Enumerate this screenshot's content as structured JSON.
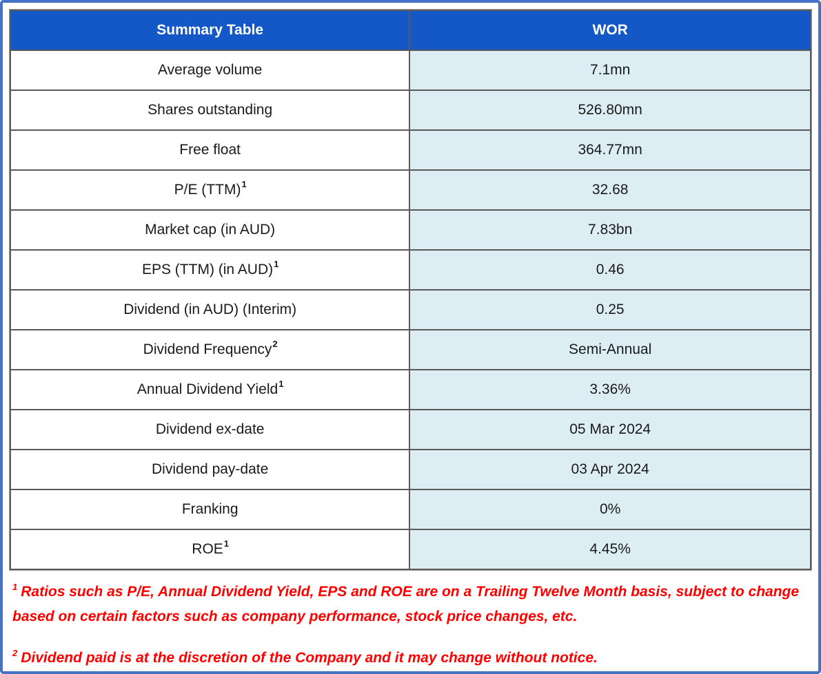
{
  "table": {
    "header": {
      "label_col": "Summary Table",
      "value_col": "WOR"
    },
    "rows": [
      {
        "label": "Average volume",
        "sup": "",
        "value": "7.1mn"
      },
      {
        "label": "Shares outstanding",
        "sup": "",
        "value": "526.80mn"
      },
      {
        "label": "Free float",
        "sup": "",
        "value": "364.77mn"
      },
      {
        "label": "P/E (TTM)",
        "sup": "1",
        "value": "32.68"
      },
      {
        "label": "Market cap (in AUD)",
        "sup": "",
        "value": "7.83bn"
      },
      {
        "label": "EPS (TTM) (in AUD)",
        "sup": "1",
        "value": "0.46"
      },
      {
        "label": "Dividend (in AUD) (Interim)",
        "sup": "",
        "value": "0.25"
      },
      {
        "label": "Dividend Frequency",
        "sup": "2",
        "value": "Semi-Annual"
      },
      {
        "label": "Annual Dividend Yield",
        "sup": "1",
        "value": "3.36%"
      },
      {
        "label": "Dividend ex-date",
        "sup": "",
        "value": "05 Mar 2024"
      },
      {
        "label": "Dividend pay-date",
        "sup": "",
        "value": "03 Apr 2024"
      },
      {
        "label": "Franking",
        "sup": "",
        "value": "0%"
      },
      {
        "label": "ROE",
        "sup": "1",
        "value": "4.45%"
      }
    ]
  },
  "footnotes": [
    {
      "sup": "1",
      "text": "Ratios such as P/E, Annual Dividend Yield, EPS and ROE are on a Trailing Twelve Month basis, subject to change based on certain factors such as company performance, stock price changes, etc."
    },
    {
      "sup": "2",
      "text": "Dividend paid is at the discretion of the Company and it may change without notice."
    }
  ],
  "colors": {
    "header_bg": "#1458C8",
    "header_text": "#FFFFFF",
    "value_bg": "#DCEEF4",
    "label_bg": "#FFFFFF",
    "grid": "#595959",
    "outer_border": "#4472C4",
    "cell_text": "#1A1A1A",
    "footnote": "#FF0000"
  }
}
